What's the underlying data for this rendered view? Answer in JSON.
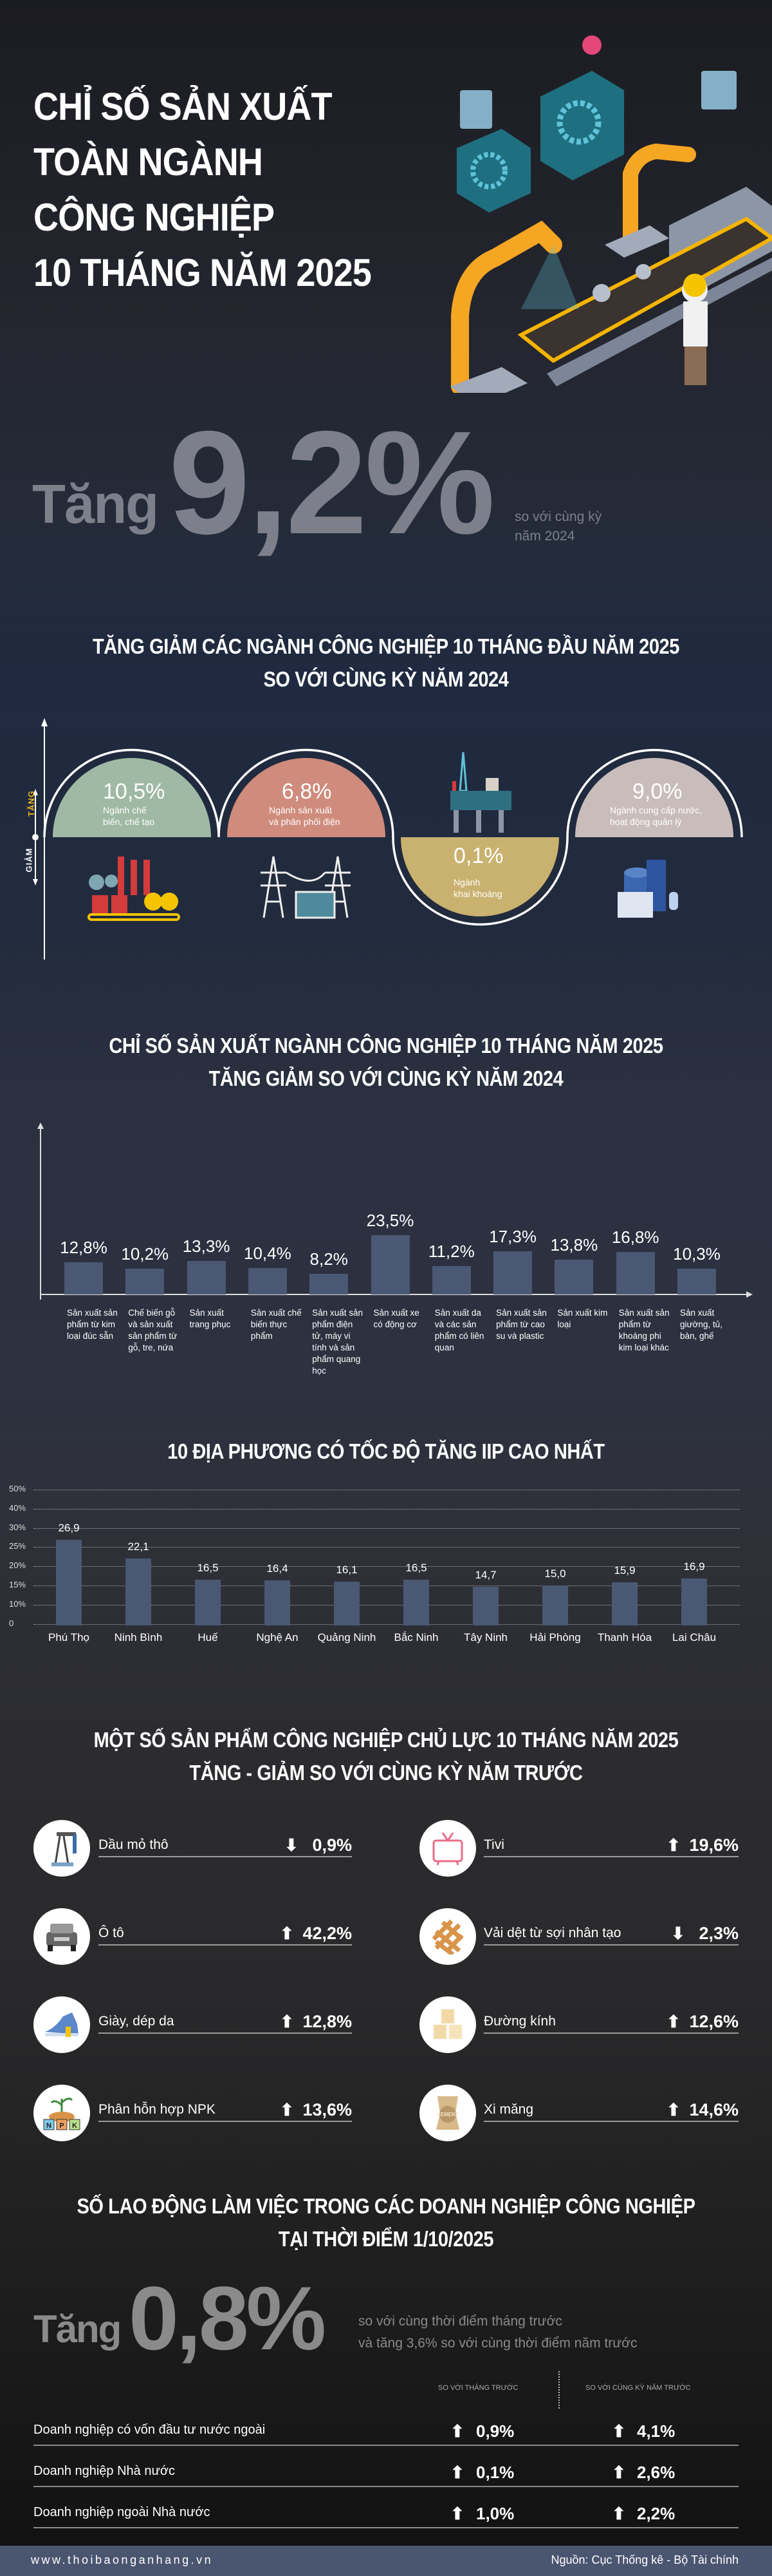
{
  "header": {
    "title_lines": [
      "CHỈ SỐ SẢN XUẤT",
      "TOÀN NGÀNH",
      "CÔNG NGHIỆP",
      "10 THÁNG NĂM 2025"
    ],
    "increase_word": "Tăng",
    "increase_value": "9,2%",
    "increase_note_lines": [
      "so với cùng kỳ",
      "năm 2024"
    ]
  },
  "sectors": {
    "title_lines": [
      "TĂNG GIẢM CÁC NGÀNH CÔNG NGHIỆP 10 THÁNG ĐẦU NĂM 2025",
      "SO VỚI CÙNG KỲ NĂM 2024"
    ],
    "axis_up": "TĂNG",
    "axis_down": "GIẢM",
    "items": [
      {
        "value": "10,5%",
        "label_lines": [
          "Ngành chế",
          "biến, chế tạo"
        ],
        "direction": "up",
        "color": "#9fb9a4",
        "icon": "factory-icon"
      },
      {
        "value": "6,8%",
        "label_lines": [
          "Ngành sản xuất",
          "và phân phối điện"
        ],
        "direction": "up",
        "color": "#cf8b7c",
        "icon": "power-tower-icon"
      },
      {
        "value": "0,1%",
        "label_lines": [
          "Ngành",
          "khai khoáng"
        ],
        "direction": "down",
        "color": "#c9b16f",
        "icon": "oil-rig-icon"
      },
      {
        "value": "9,0%",
        "label_lines": [
          "Ngành cung cấp nước,",
          "hoạt động quản lý"
        ],
        "direction": "up",
        "color": "#c9bdbc",
        "icon": "water-plant-icon"
      }
    ]
  },
  "chart_data": [
    {
      "type": "bar",
      "title": "CHỈ SỐ SẢN XUẤT NGÀNH CÔNG NGHIỆP 10 THÁNG NĂM 2025 TĂNG GIẢM SO VỚI CÙNG KỲ NĂM 2024",
      "title_lines": [
        "CHỈ SỐ SẢN XUẤT NGÀNH CÔNG NGHIỆP 10 THÁNG NĂM 2025",
        "TĂNG GIẢM SO VỚI CÙNG KỲ NĂM 2024"
      ],
      "categories": [
        "Sản xuất sản phẩm từ kim loại đúc sẵn",
        "Chế biến gỗ và sản xuất sản phẩm từ gỗ, tre, nứa",
        "Sản xuất trang phục",
        "Sản xuất chế biến thực phẩm",
        "Sản xuất sản phẩm điện tử, máy vi tính và sản phẩm quang học",
        "Sản xuất xe có động cơ",
        "Sản xuất da và các sản phẩm có liên quan",
        "Sản xuất sản phẩm từ cao su và plastic",
        "Sản xuất kim loại",
        "Sản xuất sản phẩm từ khoáng phi kim loại khác",
        "Sản xuất giường, tủ, bàn, ghế"
      ],
      "values": [
        12.8,
        10.2,
        13.3,
        10.4,
        8.2,
        23.5,
        11.2,
        17.3,
        13.8,
        16.8,
        10.3
      ],
      "value_labels": [
        "12,8%",
        "10,2%",
        "13,3%",
        "10,4%",
        "8,2%",
        "23,5%",
        "11,2%",
        "17,3%",
        "13,8%",
        "16,8%",
        "10,3%"
      ],
      "unit": "%",
      "grid": false,
      "bar_color": "#4a5873"
    },
    {
      "type": "bar",
      "title": "10 ĐỊA PHƯƠNG CÓ TỐC ĐỘ TĂNG IIP CAO NHẤT",
      "categories": [
        "Phú Thọ",
        "Ninh Bình",
        "Huế",
        "Nghệ An",
        "Quảng Ninh",
        "Bắc Ninh",
        "Tây Ninh",
        "Hải Phòng",
        "Thanh Hóa",
        "Lai Châu"
      ],
      "values": [
        26.9,
        22.1,
        16.5,
        16.4,
        16.1,
        16.5,
        14.7,
        15.0,
        15.9,
        16.9
      ],
      "value_labels": [
        "26,9",
        "22,1",
        "16,5",
        "16,4",
        "16,1",
        "16,5",
        "14,7",
        "15,0",
        "15,9",
        "16,9"
      ],
      "y_ticks": [
        0,
        10,
        15,
        20,
        25,
        30,
        40,
        50
      ],
      "y_tick_labels": [
        "0",
        "10%",
        "15%",
        "20%",
        "25%",
        "30%",
        "40%",
        "50%"
      ],
      "ylim": [
        0,
        50
      ],
      "grid": true,
      "bar_color": "#4a5873"
    }
  ],
  "products": {
    "title_lines": [
      "MỘT SỐ SẢN PHẨM CÔNG NGHIỆP CHỦ LỰC 10 THÁNG NĂM 2025",
      "TĂNG - GIẢM SO VỚI CÙNG KỲ NĂM TRƯỚC"
    ],
    "items": [
      {
        "name": "Dầu mỏ thô",
        "value": "0,9%",
        "direction": "down",
        "icon": "oil-pump-icon"
      },
      {
        "name": "Tivi",
        "value": "19,6%",
        "direction": "up",
        "icon": "tv-icon"
      },
      {
        "name": "Ô tô",
        "value": "42,2%",
        "direction": "up",
        "icon": "car-icon"
      },
      {
        "name": "Vải dệt từ sợi nhân tạo",
        "value": "2,3%",
        "direction": "down",
        "icon": "fabric-icon"
      },
      {
        "name": "Giày, dép da",
        "value": "12,8%",
        "direction": "up",
        "icon": "shoe-icon"
      },
      {
        "name": "Đường kính",
        "value": "12,6%",
        "direction": "up",
        "icon": "sugar-cube-icon"
      },
      {
        "name": "Phân hỗn hợp NPK",
        "value": "13,6%",
        "direction": "up",
        "icon": "npk-fertilizer-icon"
      },
      {
        "name": "Xi măng",
        "value": "14,6%",
        "direction": "up",
        "icon": "cement-bag-icon"
      }
    ],
    "cement_text": "CEMENT",
    "npk_letters": [
      "N",
      "P",
      "K"
    ]
  },
  "labor": {
    "title_lines": [
      "SỐ LAO ĐỘNG LÀM VIỆC TRONG CÁC DOANH NGHIỆP CÔNG NGHIỆP",
      "TẠI THỜI ĐIỂM 1/10/2025"
    ],
    "increase_word": "Tăng",
    "increase_value": "0,8%",
    "note_lines": [
      "so với cùng thời điểm tháng trước",
      "và tăng 3,6% so với cùng thời điểm năm trước"
    ],
    "columns": [
      "SO VỚI THÁNG TRƯỚC",
      "SO VỚI CÙNG KỲ NĂM TRƯỚC"
    ],
    "rows": [
      {
        "label": "Doanh nghiệp có vốn đầu tư nước ngoài",
        "month": "0,9%",
        "year": "4,1%"
      },
      {
        "label": "Doanh nghiệp Nhà nước",
        "month": "0,1%",
        "year": "2,6%"
      },
      {
        "label": "Doanh nghiệp ngoài Nhà nước",
        "month": "1,0%",
        "year": "2,2%"
      }
    ]
  },
  "footer": {
    "website": "www.thoibaonganhang.vn",
    "source": "Nguồn: Cục Thống kê - Bộ Tài chính",
    "color": "#4a5670"
  }
}
